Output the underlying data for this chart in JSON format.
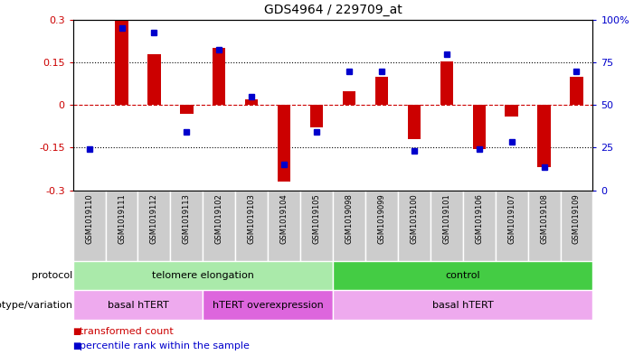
{
  "title": "GDS4964 / 229709_at",
  "samples": [
    "GSM1019110",
    "GSM1019111",
    "GSM1019112",
    "GSM1019113",
    "GSM1019102",
    "GSM1019103",
    "GSM1019104",
    "GSM1019105",
    "GSM1019098",
    "GSM1019099",
    "GSM1019100",
    "GSM1019101",
    "GSM1019106",
    "GSM1019107",
    "GSM1019108",
    "GSM1019109"
  ],
  "bar_values": [
    0.0,
    0.3,
    0.18,
    -0.03,
    0.2,
    0.02,
    -0.27,
    -0.08,
    0.05,
    0.1,
    -0.12,
    0.155,
    -0.155,
    -0.04,
    -0.22,
    0.1
  ],
  "dot_values": [
    -0.155,
    0.27,
    0.255,
    -0.095,
    0.195,
    0.03,
    -0.21,
    -0.095,
    0.12,
    0.12,
    -0.16,
    0.18,
    -0.155,
    -0.13,
    -0.22,
    0.12
  ],
  "ylim": [
    -0.3,
    0.3
  ],
  "yticks_left": [
    -0.3,
    -0.15,
    0.0,
    0.15,
    0.3
  ],
  "ytick_labels_left": [
    "-0.3",
    "-0.15",
    "0",
    "0.15",
    "0.3"
  ],
  "right_ytick_pcts": [
    0,
    25,
    50,
    75,
    100
  ],
  "right_ytick_labels": [
    "0",
    "25",
    "50",
    "75",
    "100%"
  ],
  "hlines_dotted": [
    0.15,
    -0.15
  ],
  "bar_color": "#cc0000",
  "dot_color": "#0000cc",
  "zero_line_color": "#cc0000",
  "protocol_labels": [
    {
      "text": "telomere elongation",
      "start": 0,
      "end": 7,
      "color": "#aaeaaa"
    },
    {
      "text": "control",
      "start": 8,
      "end": 15,
      "color": "#44cc44"
    }
  ],
  "genotype_labels": [
    {
      "text": "basal hTERT",
      "start": 0,
      "end": 3,
      "color": "#eeaaee"
    },
    {
      "text": "hTERT overexpression",
      "start": 4,
      "end": 7,
      "color": "#dd66dd"
    },
    {
      "text": "basal hTERT",
      "start": 8,
      "end": 15,
      "color": "#eeaaee"
    }
  ],
  "legend_red": "transformed count",
  "legend_blue": "percentile rank within the sample",
  "label_protocol": "protocol",
  "label_genotype": "genotype/variation",
  "n_samples": 16,
  "bar_width": 0.4,
  "sample_bg": "#cccccc"
}
